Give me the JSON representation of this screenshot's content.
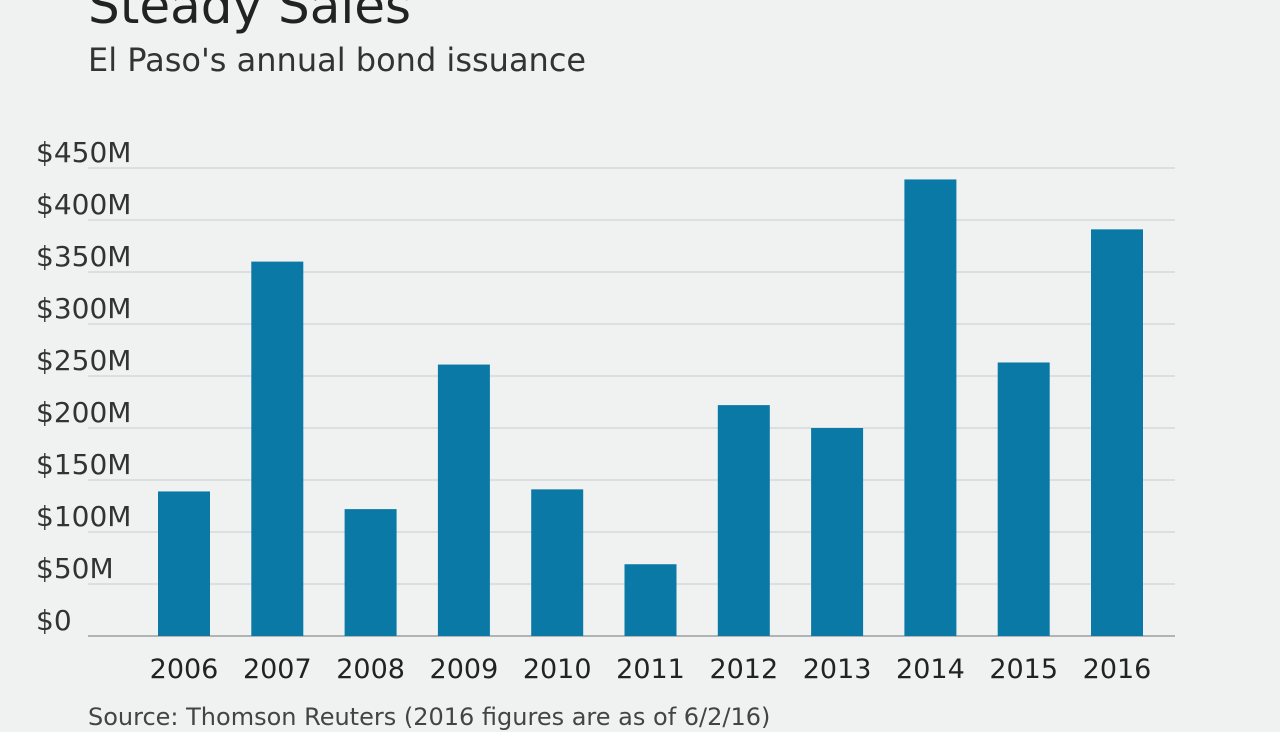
{
  "title": "Steady Sales",
  "subtitle": "El Paso's annual bond issuance",
  "source": "Source: Thomson Reuters (2016 figures are as of 6/2/16)",
  "colors": {
    "bar": "#0a79a6",
    "grid": "#d0d4d4",
    "axis": "#9aa0a0"
  },
  "chart_data": {
    "type": "bar",
    "title": "Steady Sales",
    "subtitle": "El Paso's annual bond issuance",
    "categories": [
      "2006",
      "2007",
      "2008",
      "2009",
      "2010",
      "2011",
      "2012",
      "2013",
      "2014",
      "2015",
      "2016"
    ],
    "values": [
      139,
      360,
      122,
      261,
      141,
      69,
      222,
      200,
      439,
      263,
      391
    ],
    "ylim": [
      0,
      450
    ],
    "yticks": [
      0,
      50,
      100,
      150,
      200,
      250,
      300,
      350,
      400,
      450
    ],
    "ytick_labels": [
      "$0",
      "$50M",
      "$100M",
      "$150M",
      "$200M",
      "$250M",
      "$300M",
      "$350M",
      "$400M",
      "$450M"
    ],
    "grid": true,
    "legend": "none"
  }
}
